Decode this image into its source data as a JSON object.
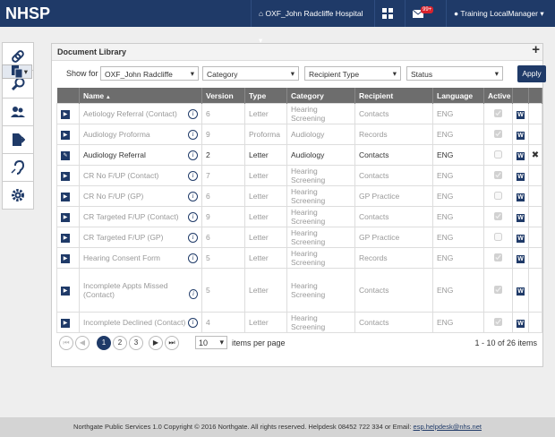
{
  "nav": {
    "brand": "NHSP",
    "hospital": "OXF_John Radcliffe Hospital",
    "badge": "99+",
    "user": "Training LocalManager"
  },
  "panel": {
    "title": "Document Library",
    "filters": {
      "label": "Show for",
      "selects": [
        "OXF_John Radcliffe",
        "Category",
        "Recipient Type",
        "Status"
      ],
      "button": "Apply"
    },
    "table": {
      "columns": [
        "Name",
        "Version",
        "Type",
        "Category",
        "Recipient",
        "Language",
        "Active"
      ],
      "rows": [
        {
          "cells": [
            "Aetiology Referral (Contact)",
            6,
            "Letter",
            "Hearing Screening",
            "Contacts",
            "ENG"
          ],
          "active": true,
          "editable": false
        },
        {
          "cells": [
            "Audiology Proforma",
            9,
            "Proforma",
            "Audiology",
            "Records",
            "ENG"
          ],
          "active": true,
          "editable": false
        },
        {
          "cells": [
            "Audiology Referral",
            2,
            "Letter",
            "Audiology",
            "Contacts",
            "ENG"
          ],
          "active": false,
          "editable": true
        },
        {
          "cells": [
            "CR No F/UP (Contact)",
            7,
            "Letter",
            "Hearing Screening",
            "Contacts",
            "ENG"
          ],
          "active": true,
          "editable": false
        },
        {
          "cells": [
            "CR No F/UP (GP)",
            6,
            "Letter",
            "Hearing Screening",
            "GP Practice",
            "ENG"
          ],
          "active": false,
          "editable": false
        },
        {
          "cells": [
            "CR Targeted F/UP (Contact)",
            9,
            "Letter",
            "Hearing Screening",
            "Contacts",
            "ENG"
          ],
          "active": true,
          "editable": false
        },
        {
          "cells": [
            "CR Targeted F/UP (GP)",
            6,
            "Letter",
            "Hearing Screening",
            "GP Practice",
            "ENG"
          ],
          "active": false,
          "editable": false
        },
        {
          "cells": [
            "Hearing Consent Form",
            5,
            "Letter",
            "Hearing Screening",
            "Records",
            "ENG"
          ],
          "active": true,
          "editable": false
        },
        {
          "cells": [
            "Incomplete Appts Missed (Contact)",
            5,
            "Letter",
            "Hearing Screening",
            "Contacts",
            "ENG"
          ],
          "active": true,
          "editable": false
        },
        {
          "cells": [
            "Incomplete Declined (Contact)",
            4,
            "Letter",
            "Hearing Screening",
            "Contacts",
            "ENG"
          ],
          "active": true,
          "editable": false
        }
      ]
    },
    "pager": {
      "pages": [
        1,
        2,
        3
      ],
      "page_size": 10,
      "page_size_label": "items per page",
      "summary": "1 - 10 of 26 items"
    }
  },
  "footer": {
    "text": "Northgate Public Services 1.0 Copyright © 2016 Northgate. All rights reserved. Helpdesk 08452 722 334 or Email:",
    "email": "esp.helpdesk@nhs.net"
  }
}
